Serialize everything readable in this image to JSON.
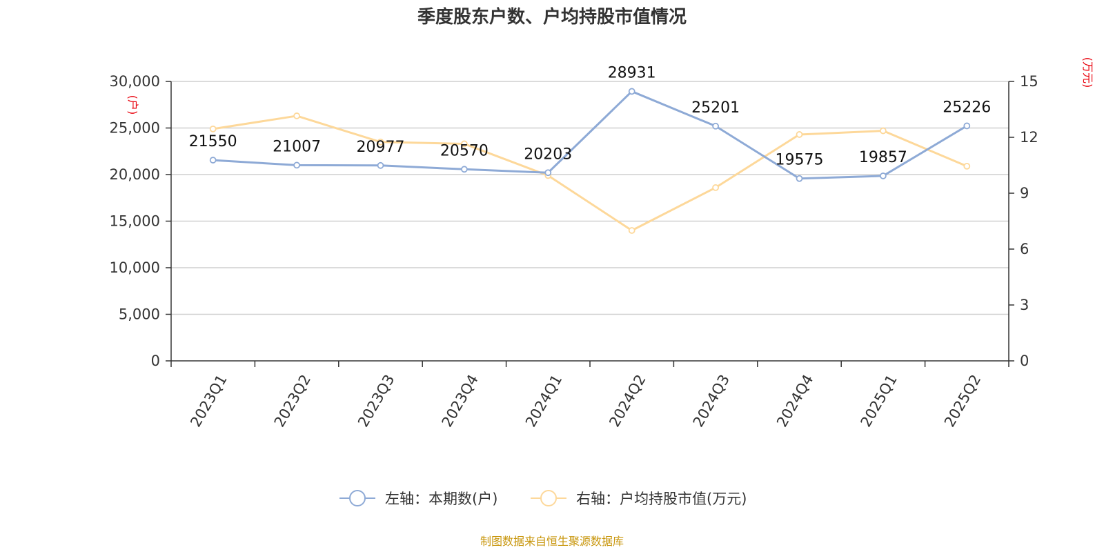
{
  "chart_data": {
    "type": "line",
    "title": "季度股东户数、户均持股市值情况",
    "categories": [
      "2023Q1",
      "2023Q2",
      "2023Q3",
      "2023Q4",
      "2024Q1",
      "2024Q2",
      "2024Q3",
      "2024Q4",
      "2025Q1",
      "2025Q2"
    ],
    "left_axis": {
      "unit": "(户)",
      "min": 0,
      "max": 30000,
      "ticks": [
        "0",
        "5,000",
        "10,000",
        "15,000",
        "20,000",
        "25,000",
        "30,000"
      ],
      "tick_values": [
        0,
        5000,
        10000,
        15000,
        20000,
        25000,
        30000
      ]
    },
    "right_axis": {
      "unit": "(万元)",
      "min": 0,
      "max": 15,
      "ticks": [
        "0",
        "3",
        "6",
        "9",
        "12",
        "15"
      ],
      "tick_values": [
        0,
        3,
        6,
        9,
        12,
        15
      ]
    },
    "series": [
      {
        "name": "左轴：本期数(户)",
        "axis": "left",
        "color": "#8eaad6",
        "values": [
          21550,
          21007,
          20977,
          20570,
          20203,
          28931,
          25201,
          19575,
          19857,
          25226
        ],
        "labels": [
          "21550",
          "21007",
          "20977",
          "20570",
          "20203",
          "28931",
          "25201",
          "19575",
          "19857",
          "25226"
        ]
      },
      {
        "name": "右轴：户均持股市值(万元)",
        "axis": "right",
        "color": "#fdd89a",
        "values": [
          12.45,
          13.15,
          11.75,
          11.65,
          9.95,
          7.0,
          9.3,
          12.15,
          12.35,
          10.45
        ]
      }
    ],
    "grid": true,
    "legend_position": "bottom-center",
    "source": "制图数据来自恒生聚源数据库"
  }
}
